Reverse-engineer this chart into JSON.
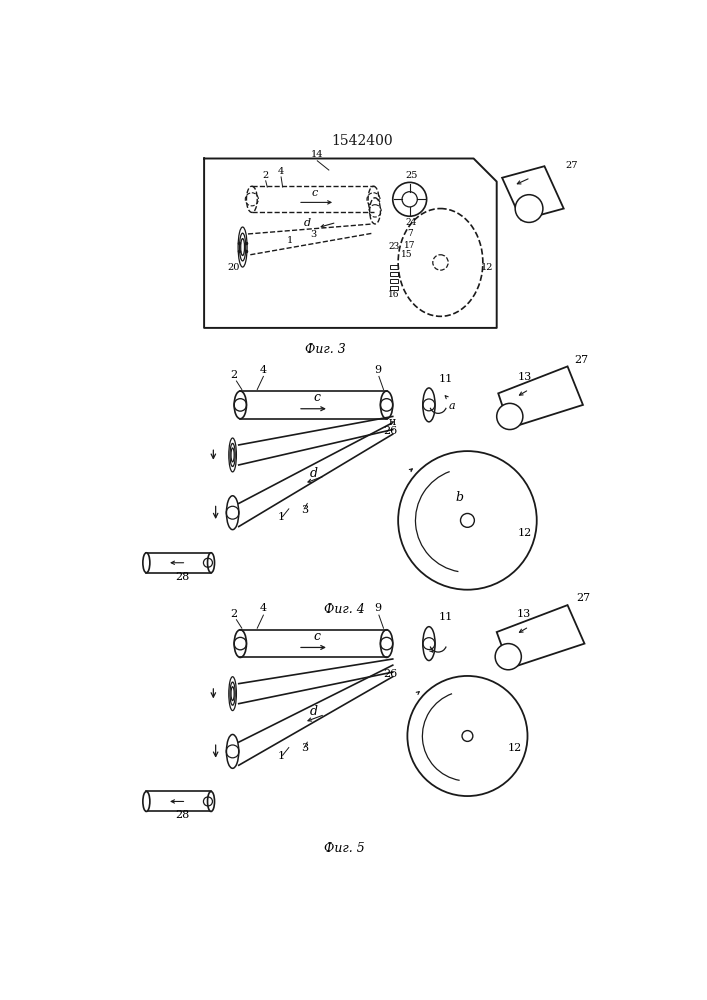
{
  "title": "1542400",
  "line_color": "#1a1a1a",
  "fig3_label": "Фиг. 3",
  "fig4_label": "Фиг. 4",
  "fig5_label": "Фиг. 5"
}
